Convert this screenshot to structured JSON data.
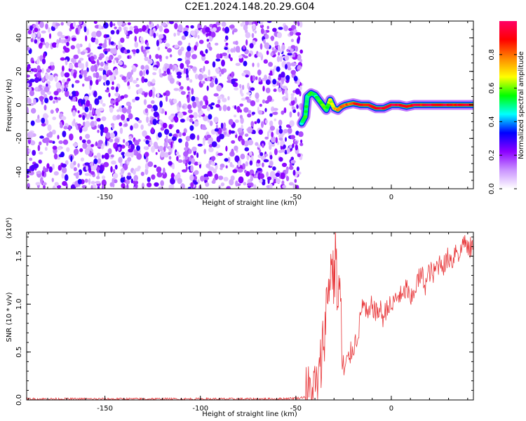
{
  "figure": {
    "title": "C2E1.2024.148.20.29.G04"
  },
  "chart_data": [
    {
      "id": "spectrogram",
      "type": "heatmap",
      "title": "C2E1.2024.148.20.29.G04",
      "xlabel": "Height of straight line (km)",
      "ylabel": "Frequency (Hz)",
      "xlim": [
        -191,
        43
      ],
      "ylim": [
        -50,
        50
      ],
      "x_ticks": [
        -150,
        -100,
        -50,
        0
      ],
      "y_ticks": [
        -40,
        -20,
        0,
        20,
        40
      ],
      "noise_region": {
        "x_range": [
          -191,
          -47
        ],
        "y_range": [
          -50,
          50
        ],
        "amplitude_range": [
          0.0,
          0.25
        ]
      },
      "signal_track": {
        "x": [
          -47,
          -45,
          -44,
          -42,
          -40,
          -38,
          -36,
          -34,
          -32,
          -30,
          -28,
          -26,
          -24,
          -20,
          -16,
          -12,
          -8,
          -4,
          0,
          4,
          8,
          12,
          16,
          20,
          24,
          28,
          32,
          36,
          40,
          43
        ],
        "frequency": [
          -11,
          -7,
          5,
          7,
          6,
          3,
          0,
          -3,
          3,
          -2,
          -3,
          -1,
          0,
          1,
          0,
          0,
          -2,
          -2,
          0,
          0,
          -1,
          0,
          0,
          0,
          0,
          0,
          0,
          0,
          0,
          0
        ],
        "amplitude": [
          0.45,
          0.55,
          0.5,
          0.55,
          0.5,
          0.55,
          0.6,
          0.55,
          0.65,
          0.7,
          0.75,
          0.8,
          0.8,
          0.85,
          0.9,
          0.9,
          0.95,
          0.95,
          0.95,
          0.95,
          0.9,
          0.95,
          0.9,
          0.95,
          0.9,
          0.95,
          0.9,
          0.95,
          0.9,
          0.9
        ]
      },
      "colorbar": {
        "label": "Normalized spectral amplitude",
        "range": [
          0.0,
          1.0
        ],
        "ticks": [
          "0.0",
          "0.2",
          "0.4",
          "0.6",
          "0.8"
        ],
        "colors": [
          "#ffffff",
          "#ca94ff",
          "#8c00ff",
          "#0000ff",
          "#00ffff",
          "#00ff00",
          "#ffff00",
          "#ff8800",
          "#ff0000",
          "#ff0066"
        ]
      }
    },
    {
      "id": "snr",
      "type": "line",
      "xlabel": "Height of straight line (km)",
      "ylabel": "SNR (10 * v/v)",
      "y_multiplier": "(x10⁴)",
      "xlim": [
        -191,
        43
      ],
      "ylim": [
        0,
        1.75
      ],
      "x_ticks": [
        -150,
        -100,
        -50,
        0
      ],
      "y_ticks": [
        "0.0",
        "0.5",
        "1.0",
        "1.5"
      ],
      "color": "#e8373a",
      "series": [
        {
          "x": [
            -191,
            -150,
            -100,
            -60,
            -48,
            -44,
            -41,
            -38,
            -36,
            -34,
            -32,
            -31,
            -30,
            -29,
            -28,
            -27,
            -26,
            -25,
            -24,
            -22,
            -20,
            -18,
            -16,
            -15,
            -14,
            -12,
            -10,
            -8,
            -6,
            -4,
            -2,
            0,
            2,
            4,
            6,
            8,
            10,
            12,
            14,
            16,
            18,
            20,
            22,
            24,
            26,
            28,
            30,
            32,
            34,
            36,
            38,
            40,
            43
          ],
          "y": [
            0.01,
            0.01,
            0.01,
            0.01,
            0.02,
            0.04,
            0.08,
            0.15,
            0.55,
            0.95,
            1.35,
            1.45,
            1.2,
            1.65,
            0.9,
            1.3,
            0.55,
            0.25,
            0.35,
            0.45,
            0.55,
            0.65,
            0.85,
            1.05,
            0.95,
            0.85,
            1.0,
            0.9,
            0.95,
            0.85,
            1.0,
            0.95,
            1.05,
            1.1,
            1.05,
            1.2,
            1.0,
            1.15,
            1.25,
            1.3,
            1.2,
            1.35,
            1.3,
            1.4,
            1.45,
            1.4,
            1.5,
            1.45,
            1.6,
            1.5,
            1.7,
            1.55,
            1.62
          ]
        }
      ]
    }
  ]
}
